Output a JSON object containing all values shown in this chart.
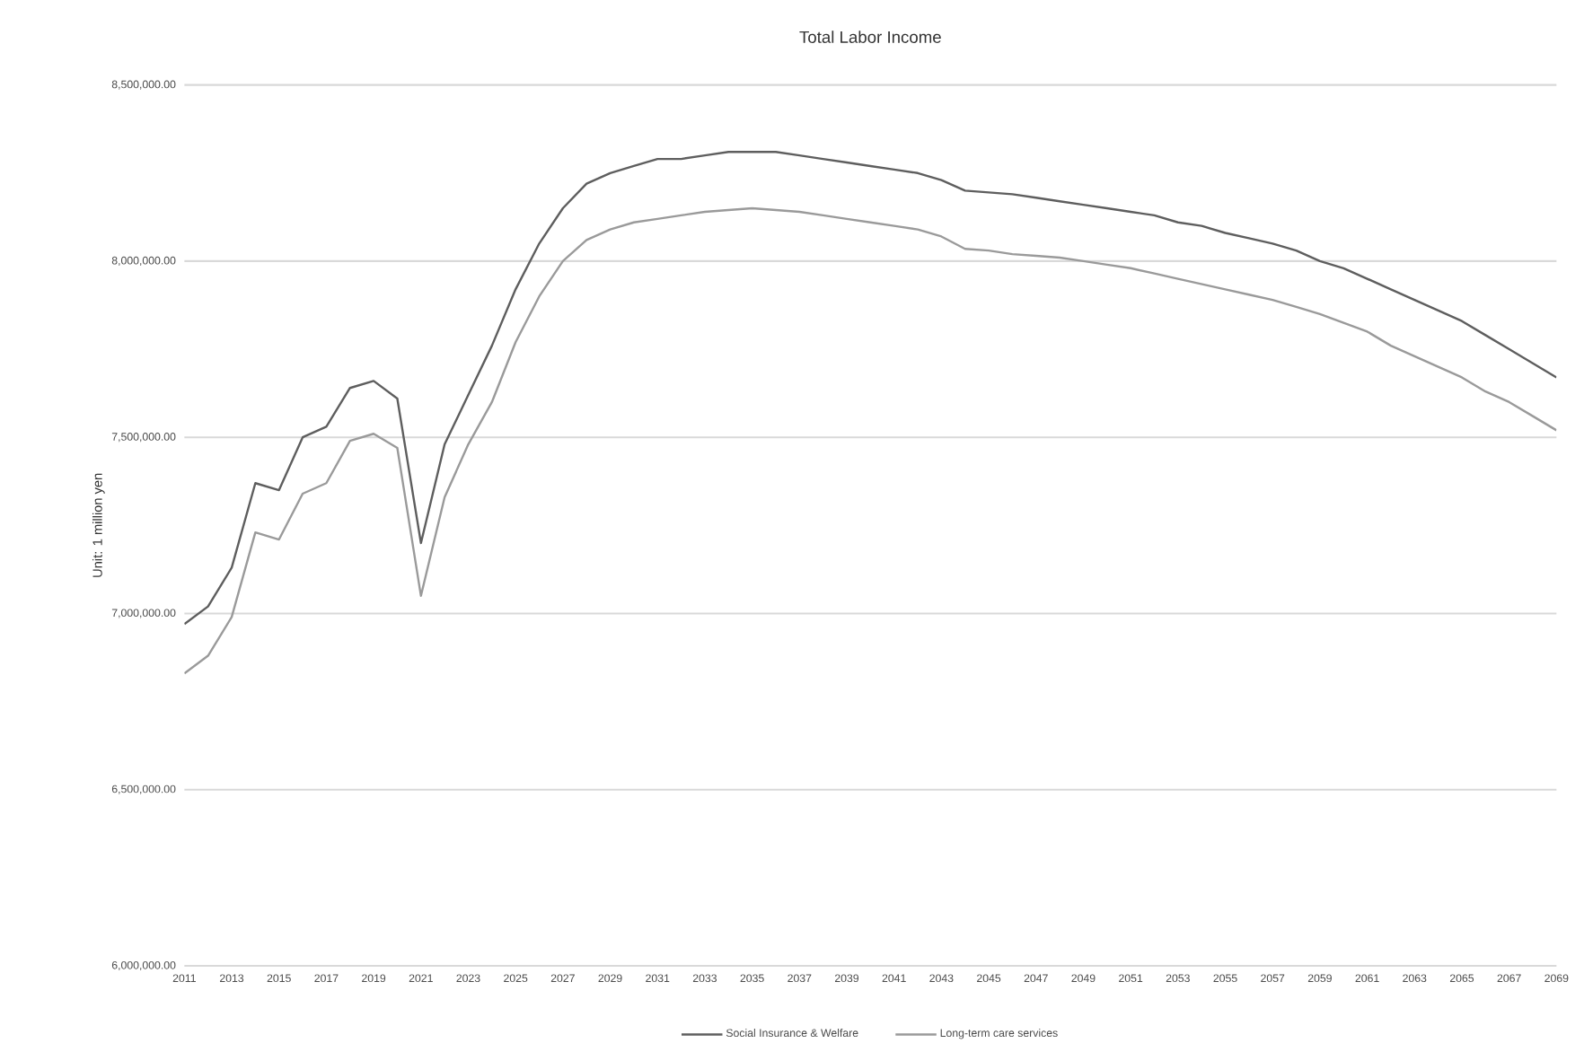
{
  "chart_data": {
    "type": "line",
    "title": "Total Labor Income",
    "ylabel": "Unit: 1 million yen",
    "x": [
      2011,
      2012,
      2013,
      2014,
      2015,
      2016,
      2017,
      2018,
      2019,
      2020,
      2021,
      2022,
      2023,
      2024,
      2025,
      2026,
      2027,
      2028,
      2029,
      2030,
      2031,
      2032,
      2033,
      2034,
      2035,
      2036,
      2037,
      2038,
      2039,
      2040,
      2041,
      2042,
      2043,
      2044,
      2045,
      2046,
      2047,
      2048,
      2049,
      2050,
      2051,
      2052,
      2053,
      2054,
      2055,
      2056,
      2057,
      2058,
      2059,
      2060,
      2061,
      2062,
      2063,
      2064,
      2065,
      2066,
      2067,
      2068,
      2069
    ],
    "series": [
      {
        "name": "Social Insurance & Welfare",
        "color": "#5e5e5e",
        "values": [
          6970000,
          7020000,
          7130000,
          7370000,
          7350000,
          7500000,
          7530000,
          7640000,
          7660000,
          7610000,
          7200000,
          7480000,
          7620000,
          7760000,
          7920000,
          8050000,
          8150000,
          8220000,
          8250000,
          8270000,
          8290000,
          8290000,
          8300000,
          8310000,
          8310000,
          8310000,
          8300000,
          8290000,
          8280000,
          8270000,
          8260000,
          8250000,
          8230000,
          8200000,
          8195000,
          8190000,
          8180000,
          8170000,
          8160000,
          8150000,
          8140000,
          8130000,
          8110000,
          8100000,
          8080000,
          8065000,
          8050000,
          8030000,
          8000000,
          7980000,
          7950000,
          7920000,
          7890000,
          7860000,
          7830000,
          7790000,
          7750000,
          7710000,
          7670000
        ]
      },
      {
        "name": "Long-term care services",
        "color": "#9a9a9a",
        "values": [
          6830000,
          6880000,
          6990000,
          7230000,
          7210000,
          7340000,
          7370000,
          7490000,
          7510000,
          7470000,
          7050000,
          7330000,
          7480000,
          7600000,
          7770000,
          7900000,
          8000000,
          8060000,
          8090000,
          8110000,
          8120000,
          8130000,
          8140000,
          8145000,
          8150000,
          8145000,
          8140000,
          8130000,
          8120000,
          8110000,
          8100000,
          8090000,
          8070000,
          8035000,
          8030000,
          8020000,
          8015000,
          8010000,
          8000000,
          7990000,
          7980000,
          7965000,
          7950000,
          7935000,
          7920000,
          7905000,
          7890000,
          7870000,
          7850000,
          7825000,
          7800000,
          7760000,
          7730000,
          7700000,
          7670000,
          7630000,
          7600000,
          7560000,
          7520000
        ]
      }
    ],
    "xlim": [
      2011,
      2069
    ],
    "xticks": [
      2011,
      2013,
      2015,
      2017,
      2019,
      2021,
      2023,
      2025,
      2027,
      2029,
      2031,
      2033,
      2035,
      2037,
      2039,
      2041,
      2043,
      2045,
      2047,
      2049,
      2051,
      2053,
      2055,
      2057,
      2059,
      2061,
      2063,
      2065,
      2067,
      2069
    ],
    "ylim": [
      6000000,
      8500000
    ],
    "yticks": [
      {
        "value": 6000000,
        "label": "6,000,000.00"
      },
      {
        "value": 6500000,
        "label": "6,500,000.00"
      },
      {
        "value": 7000000,
        "label": "7,000,000.00"
      },
      {
        "value": 7500000,
        "label": "7,500,000.00"
      },
      {
        "value": 8000000,
        "label": "8,000,000.00"
      },
      {
        "value": 8500000,
        "label": "8,500,000.00"
      }
    ],
    "grid": "y",
    "legend": "bottom",
    "marker": "none",
    "line_style": "solid"
  }
}
